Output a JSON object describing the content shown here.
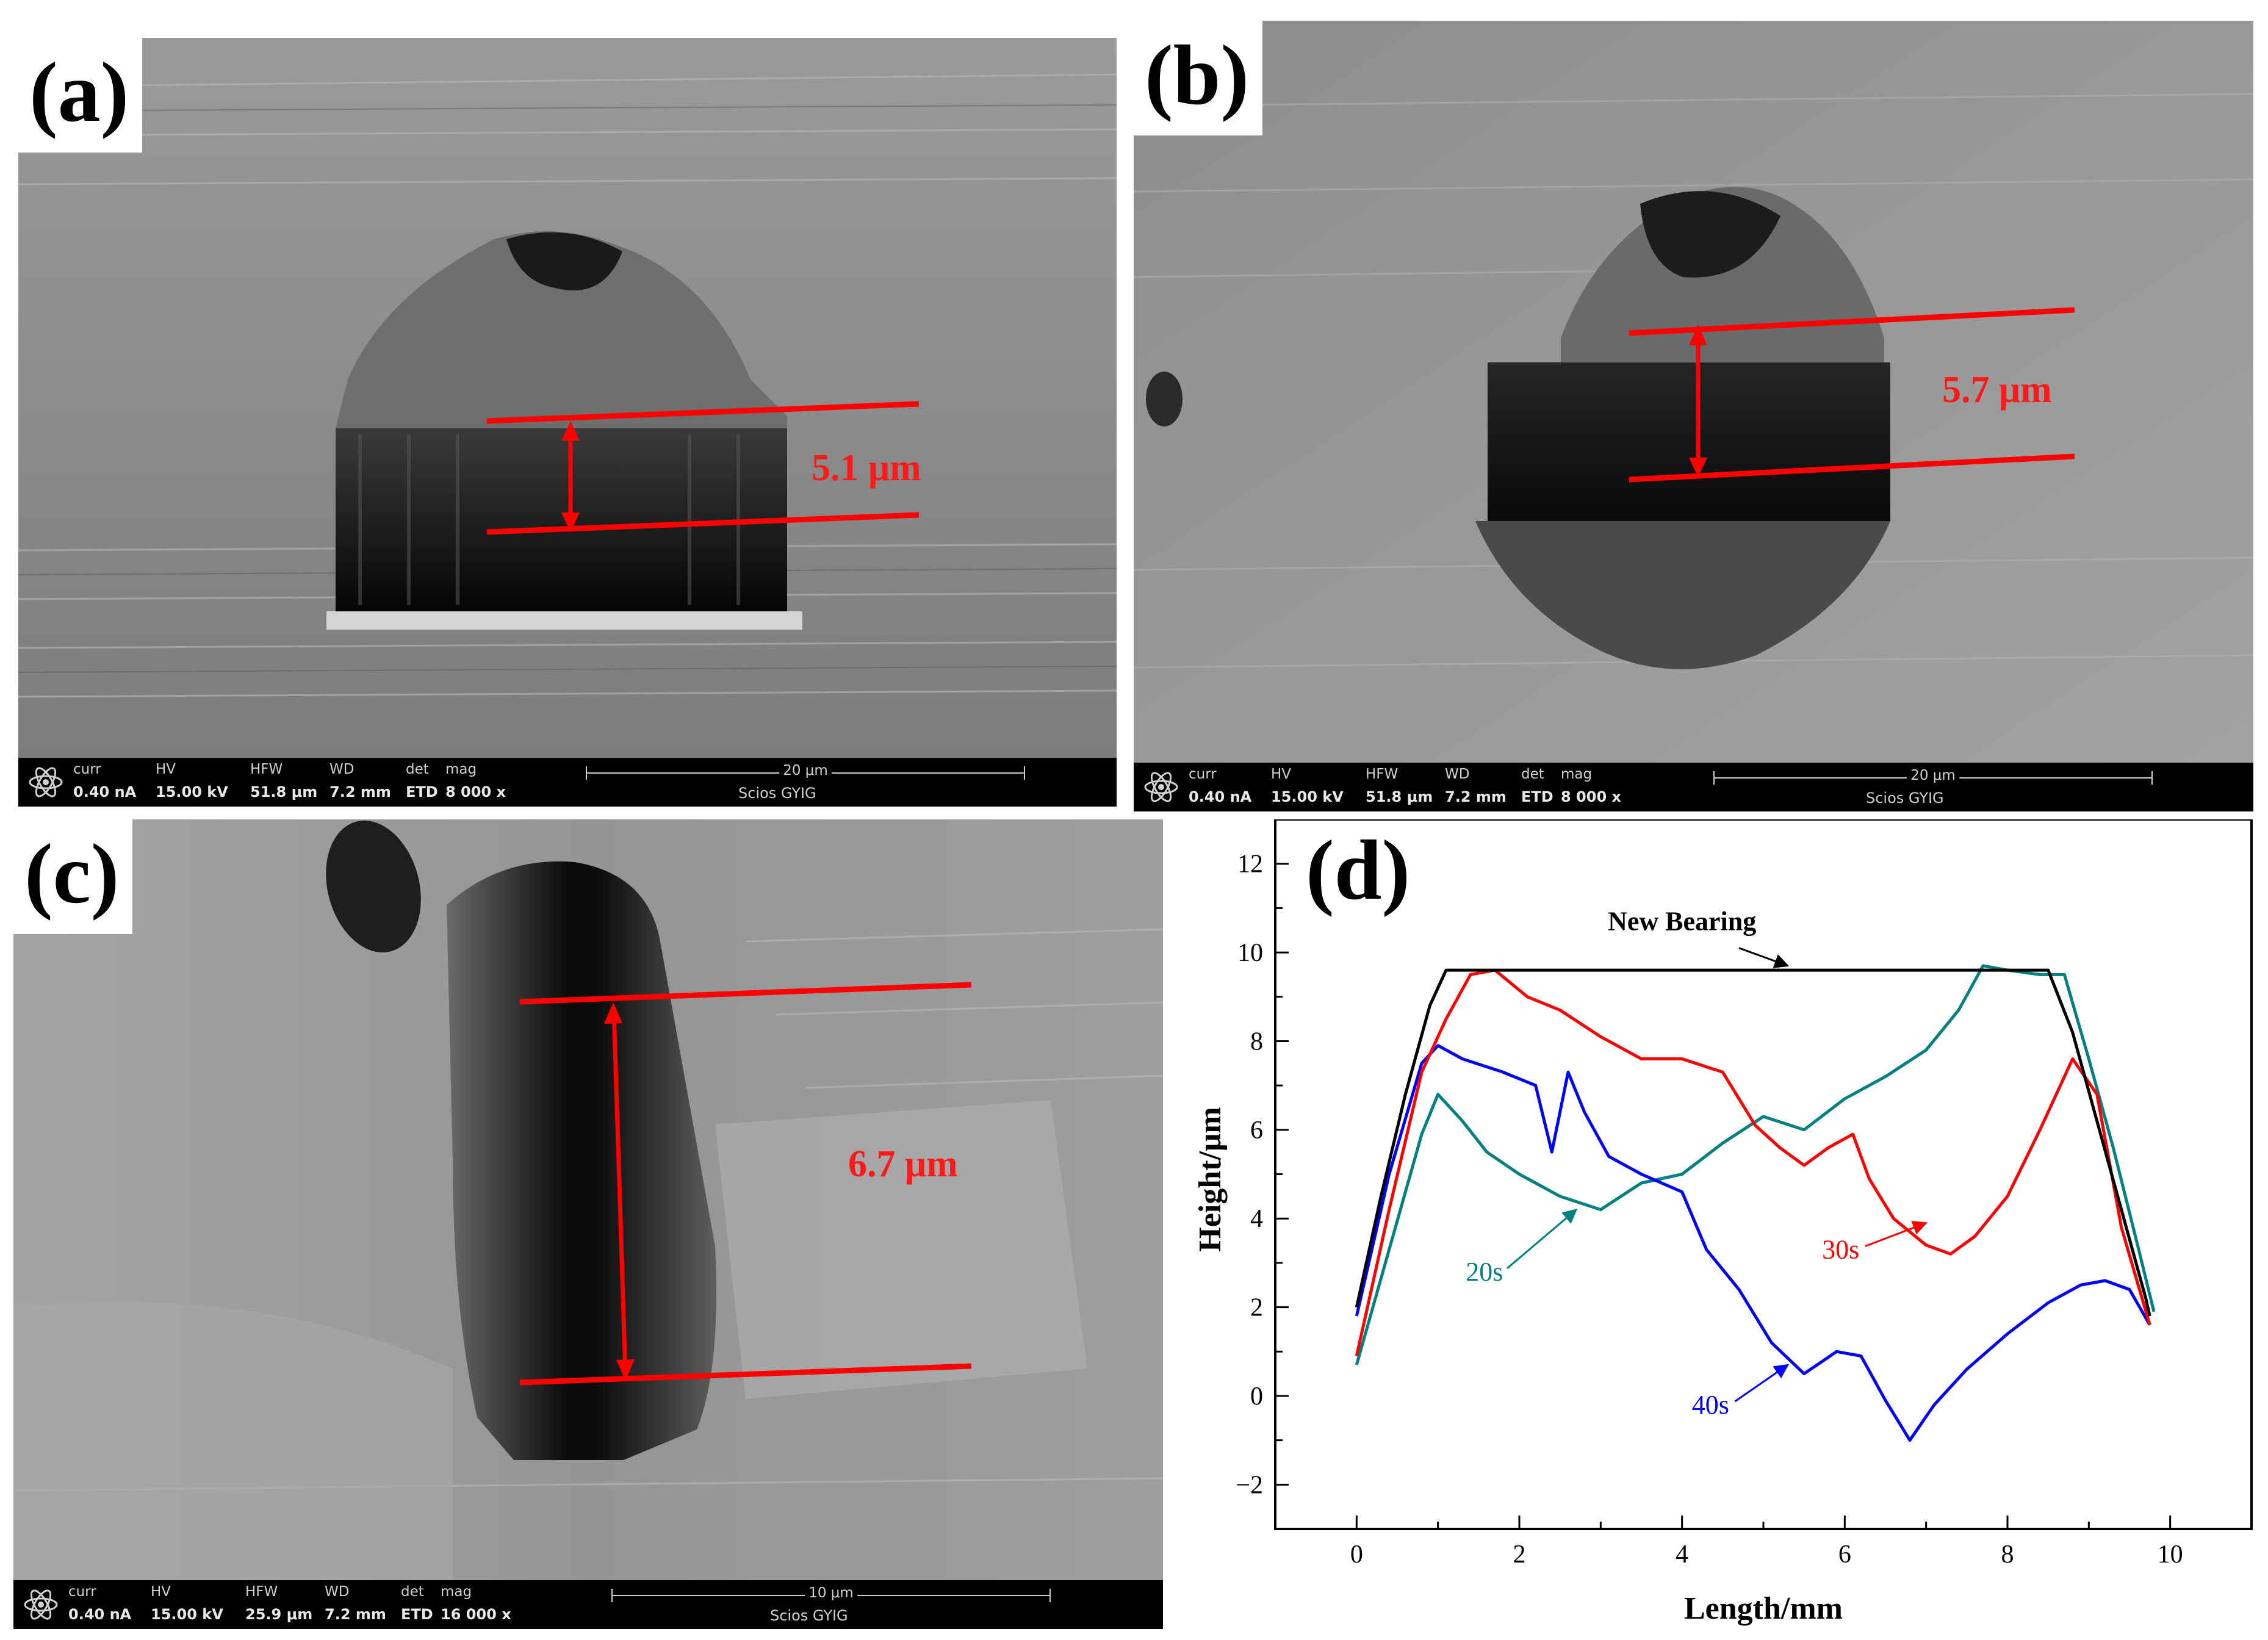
{
  "panels": {
    "a": {
      "label": "(a)",
      "measurement": "5.1 μm",
      "databar": {
        "curr": [
          "curr",
          "0.40 nA"
        ],
        "hv": [
          "HV",
          "15.00 kV"
        ],
        "hfw": [
          "HFW",
          "51.8 μm"
        ],
        "wd": [
          "WD",
          "7.2 mm"
        ],
        "det": [
          "det",
          "ETD"
        ],
        "mag": [
          "mag",
          "8 000 x"
        ],
        "scale": "20 μm",
        "instrument": "Scios  GYIG"
      }
    },
    "b": {
      "label": "(b)",
      "measurement": "5.7 μm",
      "databar": {
        "curr": [
          "curr",
          "0.40 nA"
        ],
        "hv": [
          "HV",
          "15.00 kV"
        ],
        "hfw": [
          "HFW",
          "51.8 μm"
        ],
        "wd": [
          "WD",
          "7.2 mm"
        ],
        "det": [
          "det",
          "ETD"
        ],
        "mag": [
          "mag",
          "8 000 x"
        ],
        "scale": "20 μm",
        "instrument": "Scios  GYIG"
      }
    },
    "c": {
      "label": "(c)",
      "measurement": "6.7 μm",
      "databar": {
        "curr": [
          "curr",
          "0.40 nA"
        ],
        "hv": [
          "HV",
          "15.00 kV"
        ],
        "hfw": [
          "HFW",
          "25.9 μm"
        ],
        "wd": [
          "WD",
          "7.2 mm"
        ],
        "det": [
          "det",
          "ETD"
        ],
        "mag": [
          "mag",
          "16 000 x"
        ],
        "scale": "10 μm",
        "instrument": "Scios  GYIG"
      }
    },
    "d": {
      "label": "(d)"
    }
  },
  "chart_data": {
    "type": "line",
    "title": "",
    "xlabel": "Length/mm",
    "ylabel": "Height/μm",
    "xlim": [
      -1,
      11
    ],
    "ylim": [
      -3,
      13
    ],
    "xticks": [
      0,
      2,
      4,
      6,
      8,
      10
    ],
    "yticks": [
      -2,
      0,
      2,
      4,
      6,
      8,
      10,
      12
    ],
    "grid": false,
    "series": [
      {
        "name": "New Bearing",
        "color": "#000000",
        "x": [
          0,
          0.3,
          0.6,
          0.9,
          1.1,
          1.5,
          2,
          3,
          4,
          5,
          6,
          7,
          8,
          8.5,
          8.8,
          9.1,
          9.4,
          9.7,
          9.75
        ],
        "y": [
          2.0,
          4.5,
          6.8,
          8.8,
          9.6,
          9.6,
          9.6,
          9.6,
          9.6,
          9.6,
          9.6,
          9.6,
          9.6,
          9.6,
          8.2,
          6.2,
          4.2,
          2.2,
          1.8
        ]
      },
      {
        "name": "30s",
        "color": "#ff0000",
        "x": [
          0,
          0.4,
          0.8,
          1.1,
          1.4,
          1.7,
          2.1,
          2.5,
          3.0,
          3.5,
          4.0,
          4.5,
          4.9,
          5.2,
          5.5,
          5.8,
          6.1,
          6.3,
          6.6,
          7.0,
          7.3,
          7.6,
          8.0,
          8.4,
          8.8,
          9.1,
          9.4,
          9.75
        ],
        "y": [
          0.9,
          4.2,
          7.3,
          8.5,
          9.5,
          9.6,
          9.0,
          8.7,
          8.1,
          7.6,
          7.6,
          7.3,
          6.1,
          5.6,
          5.2,
          5.6,
          5.9,
          4.9,
          4.0,
          3.4,
          3.2,
          3.6,
          4.5,
          6.0,
          7.6,
          6.8,
          3.8,
          1.6
        ]
      },
      {
        "name": "20s",
        "color": "#008080",
        "x": [
          0,
          0.4,
          0.8,
          1.0,
          1.3,
          1.6,
          2.0,
          2.5,
          3.0,
          3.5,
          4.0,
          4.5,
          5.0,
          5.5,
          6.0,
          6.5,
          7.0,
          7.4,
          7.7,
          8.0,
          8.4,
          8.7,
          9.0,
          9.3,
          9.6,
          9.8
        ],
        "y": [
          0.7,
          3.3,
          5.9,
          6.8,
          6.2,
          5.5,
          5.0,
          4.5,
          4.2,
          4.8,
          5.0,
          5.7,
          6.3,
          6.0,
          6.7,
          7.2,
          7.8,
          8.7,
          9.7,
          9.6,
          9.5,
          9.5,
          7.6,
          5.6,
          3.4,
          1.9
        ]
      },
      {
        "name": "40s",
        "color": "#0000ff",
        "x": [
          0,
          0.4,
          0.8,
          1.0,
          1.3,
          1.8,
          2.2,
          2.4,
          2.6,
          2.8,
          3.1,
          3.5,
          4.0,
          4.3,
          4.7,
          5.1,
          5.5,
          5.9,
          6.2,
          6.5,
          6.8,
          7.1,
          7.5,
          8.0,
          8.5,
          8.9,
          9.2,
          9.5,
          9.75
        ],
        "y": [
          1.8,
          5.0,
          7.5,
          7.9,
          7.6,
          7.3,
          7.0,
          5.5,
          7.3,
          6.4,
          5.4,
          5.0,
          4.6,
          3.3,
          2.4,
          1.2,
          0.5,
          1.0,
          0.9,
          -0.1,
          -1.0,
          -0.2,
          0.6,
          1.4,
          2.1,
          2.5,
          2.6,
          2.4,
          1.6
        ]
      }
    ],
    "annotations": [
      {
        "text": "New Bearing",
        "arrow_to": [
          5.3,
          9.7
        ]
      },
      {
        "text": "20s",
        "arrow_to": [
          2.7,
          4.2
        ]
      },
      {
        "text": "30s",
        "arrow_to": [
          7.0,
          3.9
        ]
      },
      {
        "text": "40s",
        "arrow_to": [
          5.3,
          0.7
        ]
      }
    ]
  }
}
